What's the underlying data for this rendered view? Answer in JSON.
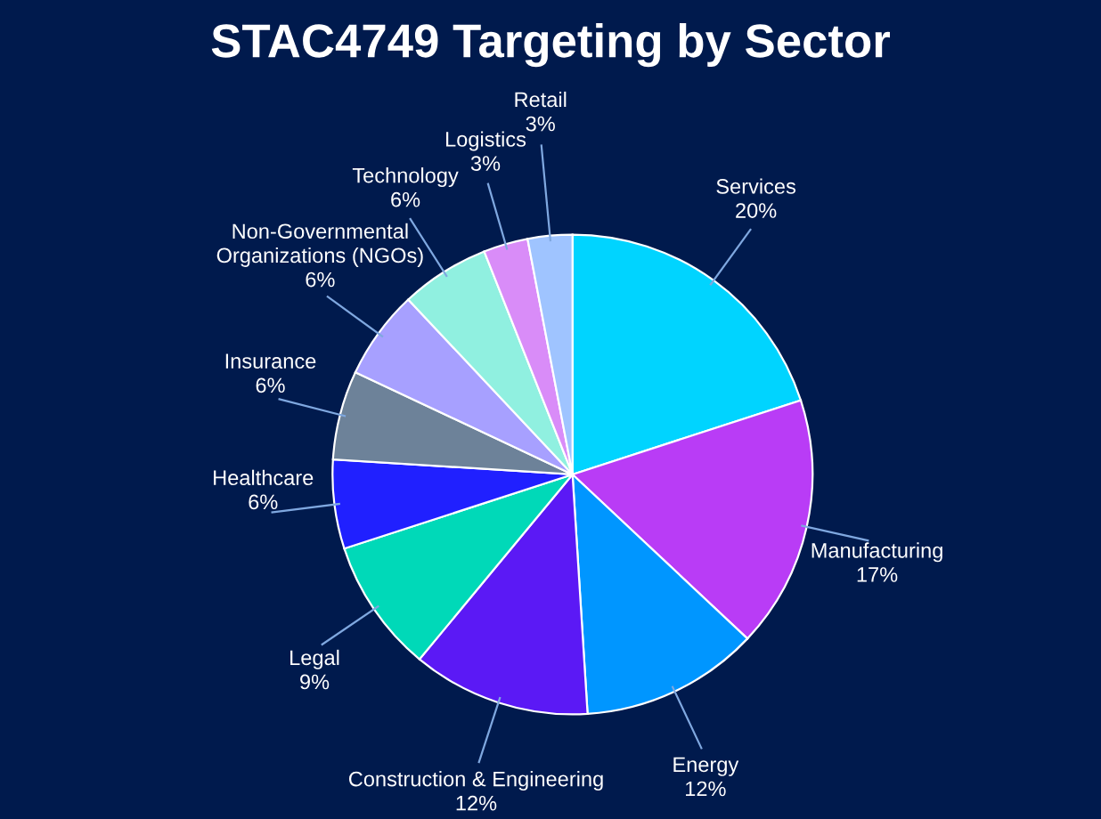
{
  "chart_data": {
    "type": "pie",
    "title": "STAC4749 Targeting by Sector",
    "categories": [
      "Services",
      "Manufacturing",
      "Energy",
      "Construction & Engineering",
      "Legal",
      "Healthcare",
      "Insurance",
      "Non-Governmental\nOrganizations (NGOs)",
      "Technology",
      "Logistics",
      "Retail"
    ],
    "values": [
      20,
      17,
      12,
      12,
      9,
      6,
      6,
      6,
      6,
      3,
      3
    ],
    "value_labels": [
      "20%",
      "17%",
      "12%",
      "12%",
      "9%",
      "6%",
      "6%",
      "6%",
      "6%",
      "3%",
      "3%"
    ],
    "colors": [
      "#00d4ff",
      "#b93cf6",
      "#0096ff",
      "#5b19f5",
      "#00d9b8",
      "#2020ff",
      "#6d8299",
      "#a7a0ff",
      "#90f0e0",
      "#d98cf8",
      "#9fc4ff"
    ],
    "legend": false
  }
}
